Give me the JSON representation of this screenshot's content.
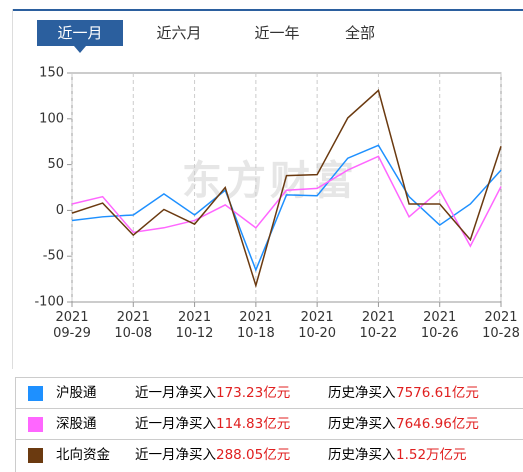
{
  "chart_data": {
    "type": "line",
    "tabs": [
      "近一月",
      "近六月",
      "近一年",
      "全部"
    ],
    "selected_tab": 0,
    "watermark": "东方财富",
    "categories": [
      "2021\n09-29",
      null,
      "2021\n10-08",
      null,
      "2021\n10-12",
      null,
      "2021\n10-18",
      null,
      "2021\n10-20",
      null,
      "2021\n10-22",
      null,
      "2021\n10-26",
      null,
      "2021\n10-28"
    ],
    "ylim": [
      -100,
      150
    ],
    "yticks": [
      -100,
      -50,
      0,
      50,
      100,
      150
    ],
    "xgrid": true,
    "month_label": "近一月净买入",
    "history_label": "历史净买入",
    "series": [
      {
        "name": "沪股通",
        "color": "#1e90ff",
        "values": [
          -11,
          -7,
          -5,
          18,
          -5,
          22,
          -65,
          17,
          16,
          57,
          71,
          15,
          -16,
          7,
          44
        ],
        "month_net_buy": "173.23亿元",
        "history_net_buy": "7576.61亿元"
      },
      {
        "name": "深股通",
        "color": "#ff66ff",
        "values": [
          7,
          15,
          -24,
          -19,
          -11,
          6,
          -19,
          22,
          24,
          44,
          59,
          -7,
          22,
          -39,
          26
        ],
        "month_net_buy": "114.83亿元",
        "history_net_buy": "7646.96亿元"
      },
      {
        "name": "北向资金",
        "color": "#6b3a10",
        "values": [
          -3,
          8,
          -27,
          1,
          -15,
          25,
          -82,
          38,
          39,
          101,
          131,
          7,
          7,
          -32,
          70
        ],
        "month_net_buy": "288.05亿元",
        "history_net_buy": "1.52万亿元"
      }
    ]
  }
}
